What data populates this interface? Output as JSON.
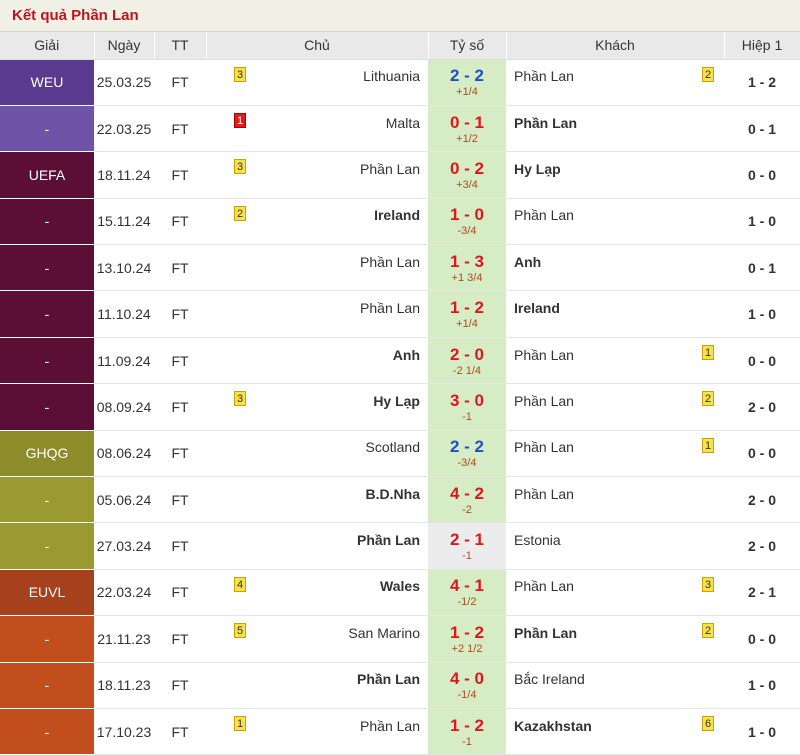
{
  "title": "Kết quả Phần Lan",
  "headers": {
    "league": "Giải",
    "date": "Ngày",
    "status": "TT",
    "home": "Chủ",
    "score": "Tỷ số",
    "away": "Khách",
    "halftime": "Hiệp 1"
  },
  "rows": [
    {
      "league": "WEU",
      "league_color": "#5a3a8e",
      "date": "25.03.25",
      "status": "FT",
      "home": "Lithuania",
      "home_bold": false,
      "home_card": "3",
      "home_card_color": "yellow",
      "score": "2 - 2",
      "score_type": "draw",
      "handicap": "+1/4",
      "away": "Phần Lan",
      "away_bold": false,
      "away_card": "2",
      "away_card_color": "yellow",
      "halftime": "1 - 2",
      "score_bg": "green"
    },
    {
      "league": "-",
      "league_color": "#6f53a6",
      "date": "22.03.25",
      "status": "FT",
      "home": "Malta",
      "home_bold": false,
      "home_card": "1",
      "home_card_color": "red",
      "score": "0 - 1",
      "score_type": "win",
      "handicap": "+1/2",
      "away": "Phần Lan",
      "away_bold": true,
      "away_card": "",
      "away_card_color": "",
      "halftime": "0 - 1",
      "score_bg": "green"
    },
    {
      "league": "UEFA",
      "league_color": "#5c0f36",
      "date": "18.11.24",
      "status": "FT",
      "home": "Phần Lan",
      "home_bold": false,
      "home_card": "3",
      "home_card_color": "yellow",
      "score": "0 - 2",
      "score_type": "win",
      "handicap": "+3/4",
      "away": "Hy Lạp",
      "away_bold": true,
      "away_card": "",
      "away_card_color": "",
      "halftime": "0 - 0",
      "score_bg": "green"
    },
    {
      "league": "-",
      "league_color": "#5c0f36",
      "date": "15.11.24",
      "status": "FT",
      "home": "Ireland",
      "home_bold": true,
      "home_card": "2",
      "home_card_color": "yellow",
      "score": "1 - 0",
      "score_type": "win",
      "handicap": "-3/4",
      "away": "Phần Lan",
      "away_bold": false,
      "away_card": "",
      "away_card_color": "",
      "halftime": "1 - 0",
      "score_bg": "green"
    },
    {
      "league": "-",
      "league_color": "#5c0f36",
      "date": "13.10.24",
      "status": "FT",
      "home": "Phần Lan",
      "home_bold": false,
      "home_card": "",
      "home_card_color": "",
      "score": "1 - 3",
      "score_type": "win",
      "handicap": "+1 3/4",
      "away": "Anh",
      "away_bold": true,
      "away_card": "",
      "away_card_color": "",
      "halftime": "0 - 1",
      "score_bg": "green"
    },
    {
      "league": "-",
      "league_color": "#5c0f36",
      "date": "11.10.24",
      "status": "FT",
      "home": "Phần Lan",
      "home_bold": false,
      "home_card": "",
      "home_card_color": "",
      "score": "1 - 2",
      "score_type": "win",
      "handicap": "+1/4",
      "away": "Ireland",
      "away_bold": true,
      "away_card": "",
      "away_card_color": "",
      "halftime": "1 - 0",
      "score_bg": "green"
    },
    {
      "league": "-",
      "league_color": "#5c0f36",
      "date": "11.09.24",
      "status": "FT",
      "home": "Anh",
      "home_bold": true,
      "home_card": "",
      "home_card_color": "",
      "score": "2 - 0",
      "score_type": "win",
      "handicap": "-2 1/4",
      "away": "Phần Lan",
      "away_bold": false,
      "away_card": "1",
      "away_card_color": "yellow",
      "halftime": "0 - 0",
      "score_bg": "green"
    },
    {
      "league": "-",
      "league_color": "#5c0f36",
      "date": "08.09.24",
      "status": "FT",
      "home": "Hy Lạp",
      "home_bold": true,
      "home_card": "3",
      "home_card_color": "yellow",
      "score": "3 - 0",
      "score_type": "win",
      "handicap": "-1",
      "away": "Phần Lan",
      "away_bold": false,
      "away_card": "2",
      "away_card_color": "yellow",
      "halftime": "2 - 0",
      "score_bg": "green"
    },
    {
      "league": "GHQG",
      "league_color": "#8c8c2a",
      "date": "08.06.24",
      "status": "FT",
      "home": "Scotland",
      "home_bold": false,
      "home_card": "",
      "home_card_color": "",
      "score": "2 - 2",
      "score_type": "draw",
      "handicap": "-3/4",
      "away": "Phần Lan",
      "away_bold": false,
      "away_card": "1",
      "away_card_color": "yellow",
      "halftime": "0 - 0",
      "score_bg": "green"
    },
    {
      "league": "-",
      "league_color": "#9a9a30",
      "date": "05.06.24",
      "status": "FT",
      "home": "B.D.Nha",
      "home_bold": true,
      "home_card": "",
      "home_card_color": "",
      "score": "4 - 2",
      "score_type": "win",
      "handicap": "-2",
      "away": "Phần Lan",
      "away_bold": false,
      "away_card": "",
      "away_card_color": "",
      "halftime": "2 - 0",
      "score_bg": "green"
    },
    {
      "league": "-",
      "league_color": "#9a9a30",
      "date": "27.03.24",
      "status": "FT",
      "home": "Phần Lan",
      "home_bold": true,
      "home_card": "",
      "home_card_color": "",
      "score": "2 - 1",
      "score_type": "win",
      "handicap": "-1",
      "away": "Estonia",
      "away_bold": false,
      "away_card": "",
      "away_card_color": "",
      "halftime": "2 - 0",
      "score_bg": "neutral"
    },
    {
      "league": "EUVL",
      "league_color": "#a7401c",
      "date": "22.03.24",
      "status": "FT",
      "home": "Wales",
      "home_bold": true,
      "home_card": "4",
      "home_card_color": "yellow",
      "score": "4 - 1",
      "score_type": "win",
      "handicap": "-1/2",
      "away": "Phần Lan",
      "away_bold": false,
      "away_card": "3",
      "away_card_color": "yellow",
      "halftime": "2 - 1",
      "score_bg": "green"
    },
    {
      "league": "-",
      "league_color": "#c24e1e",
      "date": "21.11.23",
      "status": "FT",
      "home": "San Marino",
      "home_bold": false,
      "home_card": "5",
      "home_card_color": "yellow",
      "score": "1 - 2",
      "score_type": "win",
      "handicap": "+2 1/2",
      "away": "Phần Lan",
      "away_bold": true,
      "away_card": "2",
      "away_card_color": "yellow",
      "halftime": "0 - 0",
      "score_bg": "green"
    },
    {
      "league": "-",
      "league_color": "#c24e1e",
      "date": "18.11.23",
      "status": "FT",
      "home": "Phần Lan",
      "home_bold": true,
      "home_card": "",
      "home_card_color": "",
      "score": "4 - 0",
      "score_type": "win",
      "handicap": "-1/4",
      "away": "Bắc Ireland",
      "away_bold": false,
      "away_card": "",
      "away_card_color": "",
      "halftime": "1 - 0",
      "score_bg": "green"
    },
    {
      "league": "-",
      "league_color": "#c24e1e",
      "date": "17.10.23",
      "status": "FT",
      "home": "Phần Lan",
      "home_bold": false,
      "home_card": "1",
      "home_card_color": "yellow",
      "score": "1 - 2",
      "score_type": "win",
      "handicap": "-1",
      "away": "Kazakhstan",
      "away_bold": true,
      "away_card": "6",
      "away_card_color": "yellow",
      "halftime": "1 - 0",
      "score_bg": "green"
    }
  ]
}
